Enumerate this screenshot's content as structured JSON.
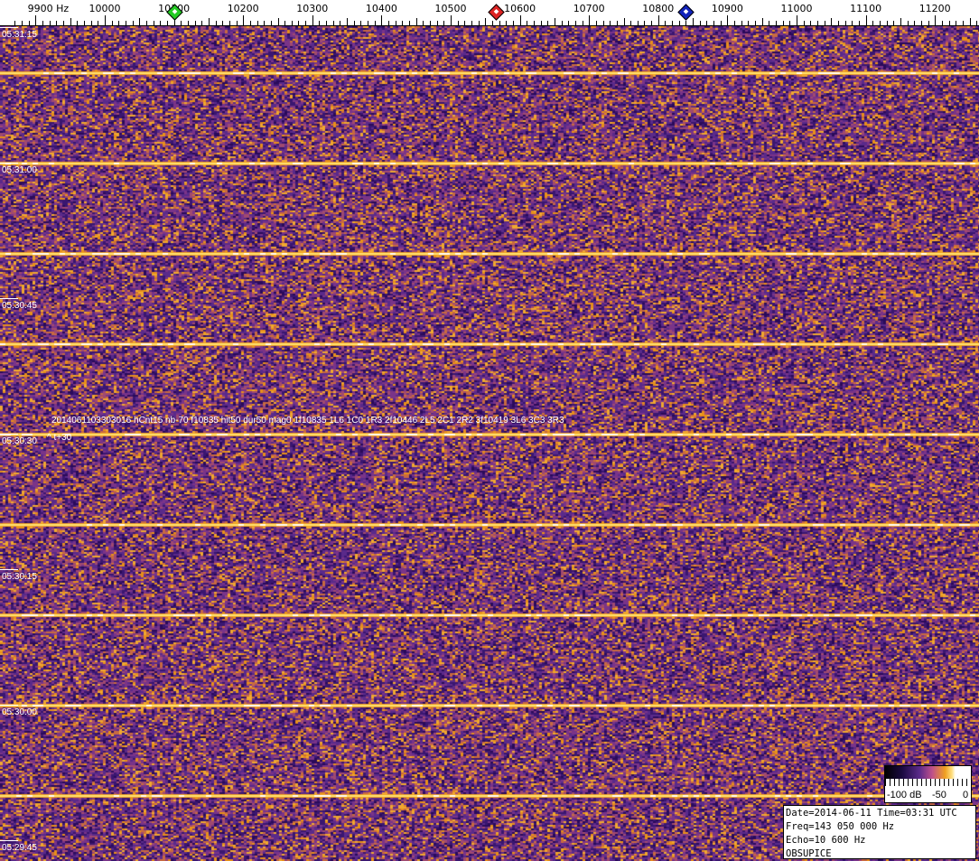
{
  "chart_data": {
    "type": "heatmap",
    "xlabel_unit": "Hz",
    "x_ticks": [
      "9900 Hz",
      "10000",
      "10100",
      "10200",
      "10300",
      "10400",
      "10500",
      "10600",
      "10700",
      "10800",
      "10900",
      "11000",
      "11100",
      "11200"
    ],
    "x_tick_values": [
      9900,
      10000,
      10100,
      10200,
      10300,
      10400,
      10500,
      10600,
      10700,
      10800,
      10900,
      11000,
      11100,
      11200
    ],
    "xlim": [
      9870,
      11265
    ],
    "y_ticks": [
      "05:31:15",
      "05:31:00",
      "05:30:45",
      "05:30:30",
      "05:30:15",
      "05:30:00",
      "05:29:45"
    ],
    "markers": [
      {
        "freq": 10100,
        "color": "#22cc22"
      },
      {
        "freq": 10565,
        "color": "#dd2222"
      },
      {
        "freq": 10840,
        "color": "#1122bb"
      }
    ],
    "colorbar": {
      "labels": [
        "-100 dB",
        "-50",
        "0"
      ],
      "range": [
        -100,
        0
      ]
    },
    "colors": {
      "low": "#2a0a5a",
      "mid": "#5a2a8a",
      "high": "#e8901a",
      "peak": "#fff0a0"
    }
  },
  "annotation": "2014061103303016 hCnt15 nb-70 f10835 hit50 dur50 mag0 1f10835 1L6 1C0 1R3 2f10446 2L5 2C1 2R2 3f10419 3L6 3C3 3R3",
  "annotation_mark": "^ t+30",
  "info": {
    "line1": "Date=2014-06-11 Time=03:31 UTC",
    "line2": "Freq=143 050 000 Hz",
    "line3": "Echo=10 600 Hz",
    "line4": "OBSUPICE"
  }
}
